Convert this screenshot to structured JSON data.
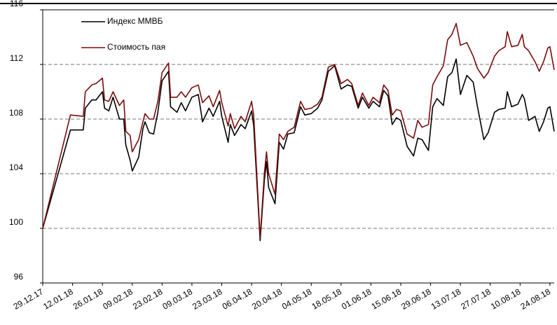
{
  "chart_data": {
    "type": "line",
    "x": [
      "29.12.17",
      "11.01.18",
      "17.01.18",
      "18.01.18",
      "21.01.18",
      "23.01.18",
      "26.01.18",
      "27.01.18",
      "29.01.18",
      "31.01.18",
      "03.02.18",
      "05.02.18",
      "06.02.18",
      "08.02.18",
      "09.02.18",
      "12.02.18",
      "14.02.18",
      "15.02.18",
      "17.02.18",
      "19.02.18",
      "21.02.18",
      "23.02.18",
      "26.02.18",
      "27.02.18",
      "02.03.18",
      "04.03.18",
      "06.03.18",
      "09.03.18",
      "12.03.18",
      "14.03.18",
      "17.03.18",
      "19.03.18",
      "22.03.18",
      "23.03.18",
      "26.03.18",
      "27.03.18",
      "29.03.18",
      "01.04.18",
      "03.04.18",
      "06.04.18",
      "07.04.18",
      "10.04.18",
      "12.04.18",
      "13.04.18",
      "14.04.18",
      "17.04.18",
      "19.04.18",
      "21.04.18",
      "23.04.18",
      "26.04.18",
      "29.04.18",
      "01.05.18",
      "04.05.18",
      "07.05.18",
      "09.05.18",
      "12.05.18",
      "15.05.18",
      "18.05.18",
      "21.05.18",
      "23.05.18",
      "26.05.18",
      "28.05.18",
      "31.05.18",
      "02.06.18",
      "05.06.18",
      "07.06.18",
      "09.06.18",
      "11.06.18",
      "13.06.18",
      "15.06.18",
      "18.06.18",
      "21.06.18",
      "23.06.18",
      "25.06.18",
      "28.06.18",
      "30.06.18",
      "02.07.18",
      "05.07.18",
      "07.07.18",
      "09.07.18",
      "11.07.18",
      "13.07.18",
      "16.07.18",
      "19.07.18",
      "21.07.18",
      "24.07.18",
      "26.07.18",
      "29.07.18",
      "31.07.18",
      "03.08.18",
      "04.08.18",
      "06.08.18",
      "09.08.18",
      "11.08.18",
      "12.08.18",
      "14.08.18",
      "17.08.18",
      "19.08.18",
      "21.08.18",
      "23.08.18",
      "24.08.18",
      "26.08.18"
    ],
    "series": [
      {
        "name": "Индекс ММВБ",
        "color": "#000000",
        "values": [
          100,
          107.2,
          107.2,
          108.8,
          109.4,
          109.4,
          110,
          108.8,
          108.6,
          109.6,
          108,
          108,
          106.1,
          105,
          104.2,
          105.2,
          107.3,
          107.8,
          107,
          106.9,
          108.5,
          110.8,
          111.5,
          108.9,
          108.5,
          109.2,
          108.6,
          109.6,
          109.8,
          107.8,
          108.8,
          108.2,
          109.3,
          108.2,
          106.3,
          107.6,
          106.8,
          107.6,
          107.3,
          108.6,
          107.5,
          99.1,
          103.5,
          104.9,
          103,
          101.8,
          106.3,
          105.8,
          106.9,
          107,
          108.9,
          108.3,
          108.4,
          108.8,
          109.4,
          111.5,
          111.9,
          110.2,
          110.5,
          110.4,
          108.8,
          109.6,
          108.8,
          109.3,
          108.9,
          110.1,
          109.7,
          107.6,
          108.1,
          107.9,
          106,
          105.3,
          106.6,
          106.5,
          105.7,
          108.9,
          109.5,
          109,
          111.1,
          111.4,
          112.4,
          109.8,
          111.2,
          110.7,
          108.9,
          106.5,
          107,
          108.5,
          108.7,
          108.8,
          110,
          108.9,
          109.1,
          109.8,
          109.5,
          107.9,
          108.2,
          107.1,
          107.8,
          108.8,
          108.9,
          107.1
        ]
      },
      {
        "name": "Стоимость пая",
        "color": "#7b0c0c",
        "values": [
          100,
          108.3,
          108.2,
          110,
          110.5,
          110.6,
          111,
          109.4,
          109.3,
          110,
          109,
          109.4,
          107.1,
          106.8,
          105.6,
          106.5,
          107.8,
          108.4,
          108,
          108,
          109.3,
          111.4,
          112.1,
          109.6,
          109.6,
          110,
          109.6,
          110.3,
          110.5,
          109.2,
          109.7,
          108.9,
          110.1,
          109.2,
          107.5,
          108.4,
          107.3,
          108.2,
          107.8,
          109.3,
          108.3,
          99.3,
          104,
          105.6,
          104,
          102.5,
          106.9,
          106.5,
          107.1,
          107.4,
          109.3,
          108.7,
          108.8,
          109.1,
          109.6,
          111.8,
          112,
          110.6,
          110.9,
          110.6,
          109,
          109.9,
          109,
          109.6,
          109.2,
          110.5,
          110.1,
          108.3,
          108.7,
          108.6,
          106.9,
          106.6,
          107.9,
          107.4,
          107.6,
          110.5,
          111.1,
          111.9,
          113.8,
          114.2,
          115,
          113.4,
          113.6,
          112.6,
          111.7,
          111,
          111.4,
          112.6,
          113,
          113.3,
          114.4,
          113.3,
          113.4,
          114.2,
          113.3,
          113,
          112.2,
          111.5,
          112.2,
          113.2,
          113.3,
          111.6
        ]
      }
    ],
    "xlim": [
      "29.12.17",
      "26.08.18"
    ],
    "xticks": [
      "29.12.17",
      "12.01.18",
      "26.01.18",
      "09.02.18",
      "23.02.18",
      "09.03.18",
      "23.03.18",
      "06.04.18",
      "20.04.18",
      "04.05.18",
      "18.05.18",
      "01.06.18",
      "15.06.18",
      "29.06.18",
      "13.07.18",
      "27.07.18",
      "10.08.18",
      "24.08.18"
    ],
    "ylim": [
      96,
      116
    ],
    "yticks": [
      96,
      100,
      104,
      108,
      112,
      116
    ],
    "grid": true,
    "legend": "top-left"
  }
}
